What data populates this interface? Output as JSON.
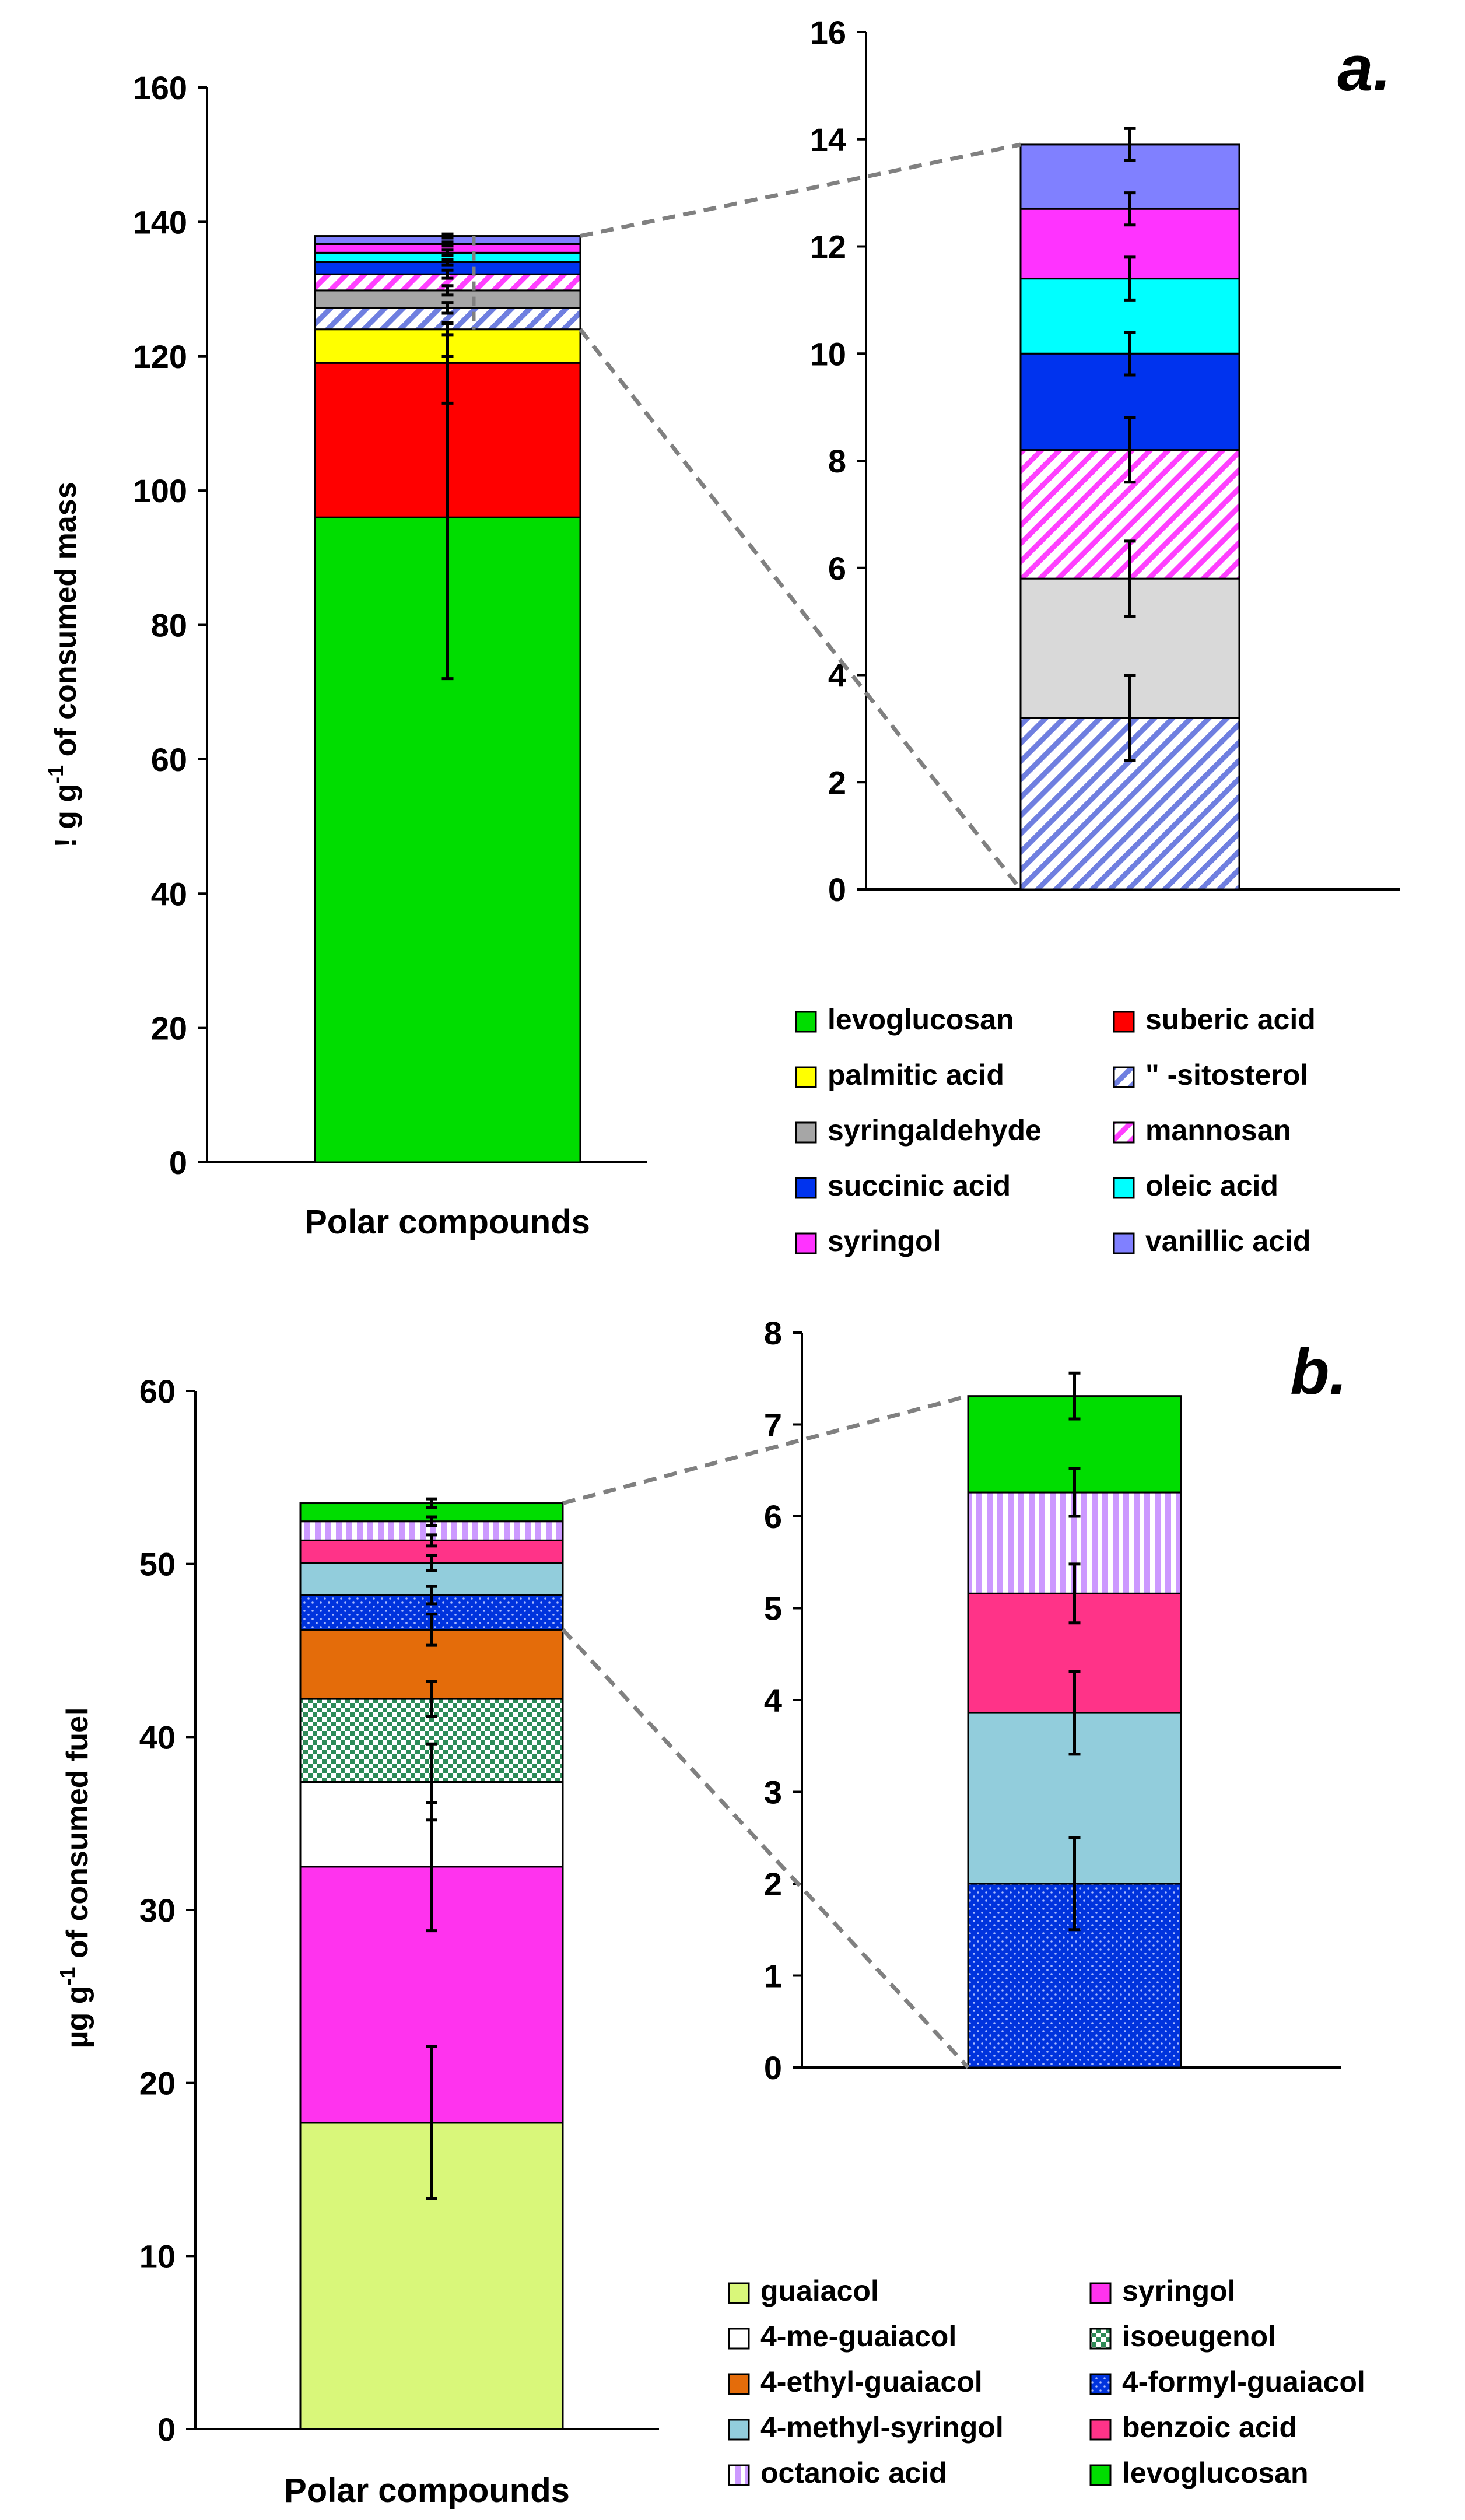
{
  "chart_data": [
    {
      "panel": "a.",
      "type": "bar",
      "stacked": true,
      "categories": [
        "Polar compounds"
      ],
      "ylabel": "! g g-1 of consumed mass",
      "ylabel_parts": {
        "prefix": "! g g",
        "sup": "-1",
        "suffix": " of consumed mass"
      },
      "ylim": [
        0,
        160
      ],
      "yticks": [
        0,
        20,
        40,
        60,
        80,
        100,
        120,
        140,
        160
      ],
      "series": [
        {
          "name": "levoglucosan",
          "values": [
            96
          ],
          "color": "#00dd00",
          "pattern": "solid",
          "error": [
            24
          ]
        },
        {
          "name": "suberic acid",
          "values": [
            23
          ],
          "color": "#ff0000",
          "pattern": "solid",
          "error": [
            6
          ]
        },
        {
          "name": "palmitic acid",
          "values": [
            5
          ],
          "color": "#ffff00",
          "pattern": "solid",
          "error": [
            0.8
          ]
        },
        {
          "name": "\" -sitosterol",
          "values": [
            3.2
          ],
          "color": "#6f7fe0",
          "pattern": "hatch",
          "error": [
            0.8
          ]
        },
        {
          "name": "syringaldehyde",
          "values": [
            2.6
          ],
          "color": "#a6a6a6",
          "pattern": "solid",
          "error": [
            0.7
          ]
        },
        {
          "name": "mannosan",
          "values": [
            2.4
          ],
          "color": "#ff40ff",
          "pattern": "hatch",
          "error": [
            0.6
          ]
        },
        {
          "name": "succinic acid",
          "values": [
            1.8
          ],
          "color": "#0033ee",
          "pattern": "solid",
          "error": [
            0.4
          ]
        },
        {
          "name": "oleic acid",
          "values": [
            1.4
          ],
          "color": "#00ffff",
          "pattern": "solid",
          "error": [
            0.4
          ]
        },
        {
          "name": "syringol",
          "values": [
            1.3
          ],
          "color": "#ff33ff",
          "pattern": "solid",
          "error": [
            0.3
          ]
        },
        {
          "name": "vanillic acid",
          "values": [
            1.2
          ],
          "color": "#8080ff",
          "pattern": "solid",
          "error": [
            0.3
          ]
        }
      ],
      "inset": {
        "ylim": [
          0,
          16
        ],
        "yticks": [
          0,
          2,
          4,
          6,
          8,
          10,
          12,
          14,
          16
        ],
        "series_start": 3,
        "inset_colors": [
          "#6f7fe0",
          "#d9d9d9",
          "#ff40ff",
          "#0033ee",
          "#00ffff",
          "#ff33ff",
          "#8080ff"
        ]
      },
      "legend": {
        "placement": "bottom-right",
        "order": [
          "levoglucosan",
          "suberic acid",
          "palmitic acid",
          "\" -sitosterol",
          "syringaldehyde",
          "mannosan",
          "succinic acid",
          "oleic acid",
          "syringol",
          "vanillic acid"
        ]
      }
    },
    {
      "panel": "b.",
      "type": "bar",
      "stacked": true,
      "categories": [
        "Polar compounds"
      ],
      "ylabel": "µg g-1 of consumed fuel",
      "ylabel_parts": {
        "prefix": "µg g",
        "sup": "-1",
        "suffix": " of consumed fuel"
      },
      "ylim": [
        0,
        60
      ],
      "yticks": [
        0,
        10,
        20,
        30,
        40,
        50,
        60
      ],
      "series": [
        {
          "name": "guaiacol",
          "values": [
            17.7
          ],
          "color": "#d9f77a",
          "pattern": "solid",
          "error": [
            4.4
          ]
        },
        {
          "name": "syringol",
          "values": [
            14.8
          ],
          "color": "#ff33ee",
          "pattern": "solid",
          "error": [
            3.7
          ]
        },
        {
          "name": "4-me-guaiacol",
          "values": [
            4.9
          ],
          "color": "#ffffff",
          "pattern": "solid",
          "error": [
            2.2
          ]
        },
        {
          "name": "isoeugenol",
          "values": [
            4.8
          ],
          "color": "#2e8b57",
          "pattern": "check",
          "error": [
            1.0
          ]
        },
        {
          "name": "4-ethyl-guaiacol",
          "values": [
            4.0
          ],
          "color": "#e46c0a",
          "pattern": "solid",
          "error": [
            0.9
          ]
        },
        {
          "name": "4-formyl-guaiacol",
          "values": [
            2.0
          ],
          "color": "#0033dd",
          "pattern": "dots",
          "error": [
            0.5
          ]
        },
        {
          "name": "4-methyl-syringol",
          "values": [
            1.86
          ],
          "color": "#92cddc",
          "pattern": "solid",
          "error": [
            0.45
          ]
        },
        {
          "name": "benzoic acid",
          "values": [
            1.3
          ],
          "color": "#ff3388",
          "pattern": "solid",
          "error": [
            0.32
          ]
        },
        {
          "name": "octanoic acid",
          "values": [
            1.1
          ],
          "color": "#cc99ff",
          "pattern": "stripes",
          "error": [
            0.26
          ]
        },
        {
          "name": "levoglucosan",
          "values": [
            1.05
          ],
          "color": "#00dd00",
          "pattern": "solid",
          "error": [
            0.25
          ]
        }
      ],
      "inset": {
        "ylim": [
          0,
          8
        ],
        "yticks": [
          0,
          1,
          2,
          3,
          4,
          5,
          6,
          7,
          8
        ],
        "series_start": 5,
        "inset_colors": [
          "#0033dd",
          "#92cddc",
          "#ff3388",
          "#cc99ff",
          "#00dd00"
        ]
      },
      "legend": {
        "placement": "bottom-right",
        "order": [
          "guaiacol",
          "syringol",
          "4-me-guaiacol",
          "isoeugenol",
          "4-ethyl-guaiacol",
          "4-formyl-guaiacol",
          "4-methyl-syringol",
          "benzoic acid",
          "octanoic acid",
          "levoglucosan"
        ]
      }
    }
  ]
}
